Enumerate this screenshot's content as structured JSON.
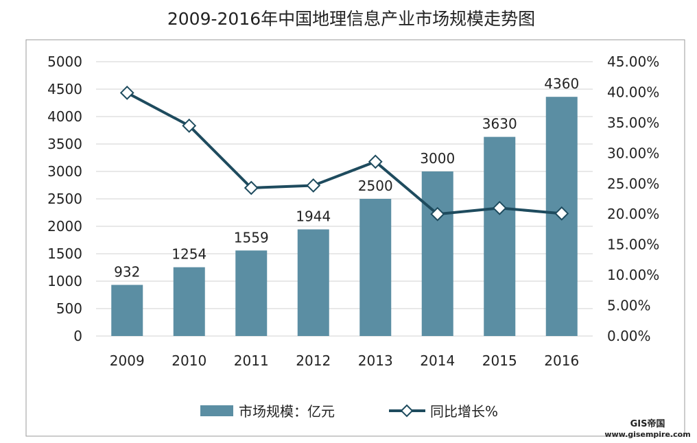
{
  "chart_data": {
    "type": "bar",
    "title": "2009-2016年中国地理信息产业市场规模走势图",
    "categories": [
      "2009",
      "2010",
      "2011",
      "2012",
      "2013",
      "2014",
      "2015",
      "2016"
    ],
    "series": [
      {
        "name": "市场规模：亿元",
        "type": "bar",
        "axis": "left",
        "values": [
          932,
          1254,
          1559,
          1944,
          2500,
          3000,
          3630,
          4360
        ],
        "color": "#5b8ea3"
      },
      {
        "name": "同比增长%",
        "type": "line",
        "axis": "right",
        "values": [
          39.9,
          34.5,
          24.3,
          24.7,
          28.6,
          20.0,
          21.0,
          20.1
        ],
        "color": "#1e4b5e",
        "marker": "diamond"
      }
    ],
    "y_left": {
      "lim": [
        0,
        5000
      ],
      "ticks": [
        "0",
        "500",
        "1000",
        "1500",
        "2000",
        "2500",
        "3000",
        "3500",
        "4000",
        "4500",
        "5000"
      ]
    },
    "y_right": {
      "lim": [
        0,
        45
      ],
      "ticks": [
        "0.00%",
        "5.00%",
        "10.00%",
        "15.00%",
        "20.00%",
        "25.00%",
        "30.00%",
        "35.00%",
        "40.00%",
        "45.00%"
      ]
    },
    "data_labels": [
      "932",
      "1254",
      "1559",
      "1944",
      "2500",
      "3000",
      "3630",
      "4360"
    ],
    "grid": true,
    "legend_position": "bottom"
  },
  "watermark": {
    "brand": "GIS帝国",
    "url": "www.gisempire.com"
  }
}
